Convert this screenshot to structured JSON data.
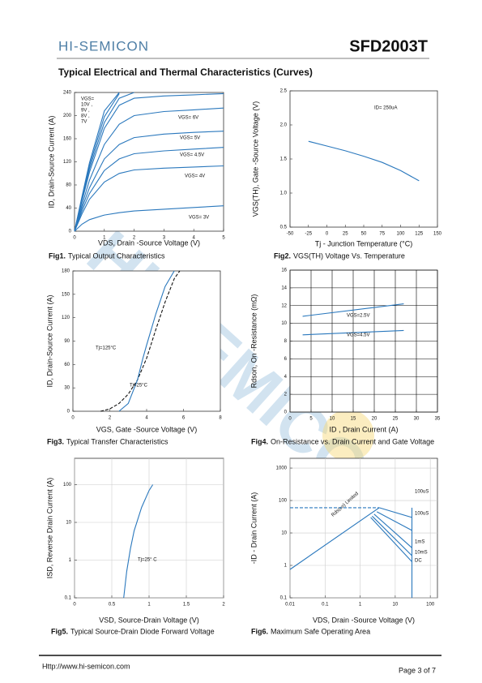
{
  "header": {
    "logo": "HI-SEMICON",
    "part": "SFD2003T"
  },
  "section_title": "Typical Electrical and Thermal Characteristics (Curves)",
  "watermark": "HI-SEMICON",
  "chart_data": [
    {
      "type": "line",
      "fig_label": "Fig1.",
      "caption": "Typical Output Characteristics",
      "xlabel": "VDS, Drain -Source Voltage (V)",
      "ylabel": "ID, Drain-Source Current (A)",
      "xlim": [
        0,
        5
      ],
      "xticks": [
        0,
        1,
        2,
        3,
        4,
        5
      ],
      "ylim": [
        0,
        240
      ],
      "yticks": [
        0,
        40,
        80,
        120,
        160,
        200,
        240
      ],
      "grid": false,
      "annotations": [
        "VGS=",
        "10V ,",
        "9V ,",
        "8V ,",
        "7V"
      ],
      "x": [
        0,
        0.25,
        0.5,
        1,
        1.5,
        2,
        3,
        4,
        5
      ],
      "series": [
        {
          "name": "VGS= 3V",
          "color": "#2a78bd",
          "values": [
            0,
            12,
            20,
            28,
            32,
            35,
            38,
            41,
            44
          ]
        },
        {
          "name": "VGS= 4V",
          "color": "#2a78bd",
          "values": [
            0,
            30,
            55,
            85,
            100,
            106,
            109,
            111,
            113
          ]
        },
        {
          "name": "VGS= 4.5V",
          "color": "#2a78bd",
          "values": [
            0,
            35,
            65,
            105,
            125,
            134,
            139,
            142,
            145
          ]
        },
        {
          "name": "VGS= 5V",
          "color": "#2a78bd",
          "values": [
            0,
            40,
            75,
            125,
            150,
            162,
            168,
            171,
            173
          ]
        },
        {
          "name": "VGS= 6V",
          "color": "#2a78bd",
          "values": [
            0,
            45,
            88,
            150,
            185,
            200,
            207,
            210,
            213
          ]
        },
        {
          "color": "#2a78bd",
          "values": [
            0,
            52,
            102,
            178,
            218,
            230,
            234,
            236,
            238
          ]
        },
        {
          "color": "#2a78bd",
          "values": [
            0,
            55,
            108,
            188,
            230,
            240,
            null,
            null,
            null
          ]
        },
        {
          "color": "#2a78bd",
          "values": [
            0,
            58,
            113,
            198,
            238,
            null,
            null,
            null,
            null
          ]
        },
        {
          "color": "#2a78bd",
          "values": [
            0,
            60,
            118,
            208,
            240,
            null,
            null,
            null,
            null
          ]
        }
      ]
    },
    {
      "type": "line",
      "fig_label": "Fig2.",
      "caption": "VGS(TH) Voltage Vs. Temperature",
      "xlabel": "Tj - Junction Temperature (°C)",
      "ylabel": "VGS(TH), Gate -Source Voltage (V)",
      "xlim": [
        -50,
        150
      ],
      "xticks": [
        -50,
        -25,
        0,
        25,
        50,
        75,
        100,
        125,
        150
      ],
      "ylim": [
        0.5,
        2.5
      ],
      "yticks": [
        0.5,
        {
          "value": 1,
          "label": "1.0"
        },
        1.5,
        {
          "value": 2,
          "label": "2.0"
        },
        2.5
      ],
      "grid": false,
      "annotations": [
        "ID= 250uA"
      ],
      "series": [
        {
          "color": "#2a78bd",
          "x": [
            -25,
            0,
            25,
            50,
            75,
            100,
            125
          ],
          "values": [
            1.76,
            1.69,
            1.62,
            1.54,
            1.45,
            1.33,
            1.18
          ]
        }
      ]
    },
    {
      "type": "line",
      "fig_label": "Fig3.",
      "caption": "Typical Transfer Characteristics",
      "xlabel": "VGS, Gate -Source Voltage (V)",
      "ylabel": "ID, Drain-Source Current (A)",
      "xlim": [
        0,
        8
      ],
      "xticks": [
        0,
        2,
        4,
        6,
        8
      ],
      "ylim": [
        0,
        180
      ],
      "yticks": [
        0,
        30,
        60,
        90,
        120,
        150,
        180
      ],
      "grid": false,
      "series": [
        {
          "name": "Tj=125°C",
          "color": "#111111",
          "dash": true,
          "x": [
            1.5,
            2,
            2.5,
            3,
            3.5,
            4,
            4.5,
            5,
            5.5,
            5.8
          ],
          "values": [
            0,
            3,
            10,
            22,
            40,
            68,
            105,
            140,
            170,
            180
          ]
        },
        {
          "name": "Tj=25°C",
          "color": "#2a78bd",
          "x": [
            2.5,
            3,
            3.5,
            3.8,
            4,
            4.5,
            5,
            5.5
          ],
          "values": [
            0,
            10,
            40,
            68,
            85,
            125,
            160,
            180
          ]
        }
      ]
    },
    {
      "type": "line",
      "fig_label": "Fig4.",
      "caption": "On-Resistance vs. Drain Current and Gate Voltage",
      "xlabel": "ID , Drain Current (A)",
      "ylabel": "Rdson, On -Resistance (mΩ)",
      "xlim": [
        0,
        35
      ],
      "xticks": [
        0,
        5,
        10,
        15,
        20,
        25,
        30,
        35
      ],
      "ylim": [
        0,
        16
      ],
      "yticks": [
        0,
        2,
        4,
        6,
        8,
        10,
        12,
        14,
        16
      ],
      "grid": true,
      "grid_color": "#000000",
      "series": [
        {
          "name": "VGS=2.5V",
          "color": "#2a78bd",
          "x": [
            3,
            27
          ],
          "values": [
            10.8,
            12.2
          ]
        },
        {
          "name": "VGS=4.5V",
          "color": "#2a78bd",
          "x": [
            3,
            27
          ],
          "values": [
            8.7,
            9.2
          ]
        }
      ]
    },
    {
      "type": "line",
      "fig_label": "Fig5.",
      "caption": "Typical Source-Drain Diode Forward Voltage",
      "xlabel": "VSD, Source-Drain Voltage (V)",
      "ylabel": "ISD, Reverse Drain Current (A)",
      "xlim": [
        0,
        2
      ],
      "xticks": [
        0,
        0.5,
        1,
        1.5,
        2
      ],
      "ylim": [
        0.1,
        500
      ],
      "ylog": true,
      "yticks": [
        0.1,
        1,
        10,
        100
      ],
      "grid": true,
      "grid_color": "#cccccc",
      "annotations": [
        "Tj=25° C"
      ],
      "series": [
        {
          "color": "#2a78bd",
          "x": [
            0.66,
            0.7,
            0.75,
            0.8,
            0.9,
            1,
            1.05
          ],
          "values": [
            0.1,
            0.5,
            2,
            6,
            25,
            70,
            100
          ]
        }
      ]
    },
    {
      "type": "line",
      "fig_label": "Fig6.",
      "caption": "Maximum Safe Operating Area",
      "xlabel": "VDS, Drain -Source Voltage (V)",
      "ylabel": "-ID - Drain Current (A)",
      "xlim": [
        0.01,
        160
      ],
      "xlog": true,
      "xticks": [
        0.01,
        0.1,
        1,
        10,
        100
      ],
      "ylim": [
        0.1,
        2000
      ],
      "ylog": true,
      "yticks": [
        0.1,
        1,
        10,
        100,
        1000
      ],
      "grid": true,
      "grid_color": "#cccccc",
      "series": [
        {
          "name": "Rds(on) Limited",
          "color": "#2a78bd",
          "x": [
            0.01,
            3.5
          ],
          "values": [
            0.75,
            60
          ]
        },
        {
          "color": "#2a78bd",
          "dash": true,
          "x": [
            0.01,
            3.5
          ],
          "values": [
            60,
            60
          ]
        },
        {
          "color": "#2a78bd",
          "x": [
            30,
            30
          ],
          "values": [
            0.1,
            60
          ]
        },
        {
          "name": "100uS",
          "color": "#2a78bd",
          "x": [
            3.5,
            30
          ],
          "values": [
            60,
            30
          ]
        },
        {
          "name": "100uS",
          "color": "#2a78bd",
          "x": [
            3,
            30
          ],
          "values": [
            45,
            12
          ]
        },
        {
          "name": "1mS",
          "color": "#2a78bd",
          "x": [
            2.5,
            30
          ],
          "values": [
            38,
            3.5
          ]
        },
        {
          "name": "10mS",
          "color": "#2a78bd",
          "x": [
            2.2,
            30
          ],
          "values": [
            33,
            2
          ]
        },
        {
          "name": "DC",
          "color": "#2a78bd",
          "x": [
            2,
            30
          ],
          "values": [
            30,
            1.3
          ]
        }
      ]
    }
  ],
  "footer": {
    "url": "Http://www.hi-semicon.com",
    "page": "Page  3   of  7"
  }
}
